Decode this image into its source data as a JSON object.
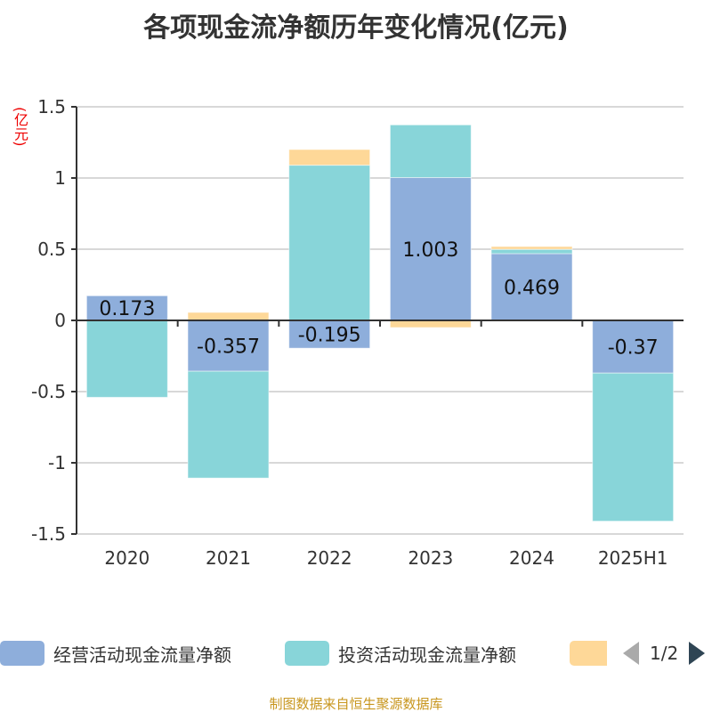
{
  "title": "各项现金流净额历年变化情况(亿元)",
  "footer": "制图数据来自恒生聚源数据库",
  "legend_page": "1/2",
  "chart_data": {
    "type": "bar",
    "stacked": true,
    "title": "各项现金流净额历年变化情况(亿元)",
    "ylabel": "(亿元)",
    "ylim": [
      -1.5,
      1.5
    ],
    "yticks": [
      1.5,
      1,
      0.5,
      0,
      -0.5,
      -1,
      -1.5
    ],
    "grid": true,
    "legend_placement": "bottom",
    "categories": [
      "2020",
      "2021",
      "2022",
      "2023",
      "2024",
      "2025H1"
    ],
    "series": [
      {
        "name": "经营活动现金流量净额",
        "color": "#8eaedb",
        "values": [
          0.173,
          -0.357,
          -0.195,
          1.003,
          0.469,
          -0.37
        ],
        "labels": [
          "0.173",
          "-0.357",
          "-0.195",
          "1.003",
          "0.469",
          "-0.37"
        ]
      },
      {
        "name": "投资活动现金流量净额",
        "color": "#88d5d9",
        "values": [
          -0.54,
          -0.75,
          1.09,
          0.37,
          0.03,
          -1.04
        ]
      },
      {
        "color": "#fed898",
        "values": [
          0,
          0.056,
          0.11,
          -0.05,
          0.02,
          0
        ]
      }
    ]
  }
}
